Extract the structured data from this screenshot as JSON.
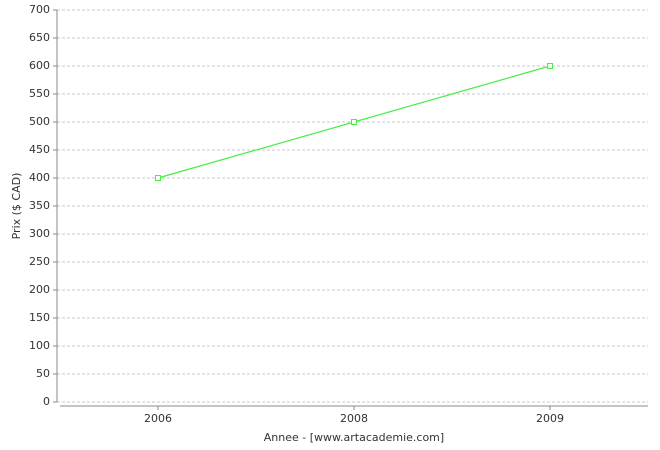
{
  "chart_data": {
    "type": "line",
    "x_label": "Annee - [www.artacademie.com]",
    "y_label": "Prix ($ CAD)",
    "categories": [
      "2006",
      "2008",
      "2009"
    ],
    "series": [
      {
        "name": "Prix",
        "color": "#44ee44",
        "values": [
          400,
          500,
          600
        ]
      }
    ],
    "ylim": [
      0,
      700
    ],
    "yticks": [
      0,
      50,
      100,
      150,
      200,
      250,
      300,
      350,
      400,
      450,
      500,
      550,
      600,
      650,
      700
    ],
    "grid": true
  }
}
